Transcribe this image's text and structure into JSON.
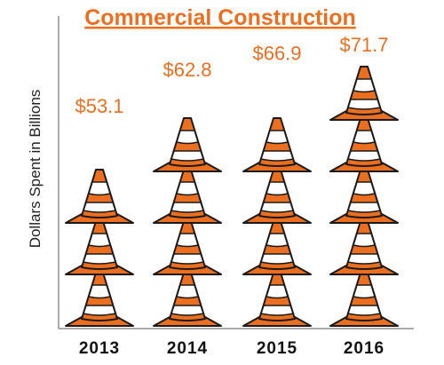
{
  "chart_data": {
    "type": "bar",
    "title": "Commercial Construction",
    "xlabel": "",
    "ylabel": "Dollars Spent in Billions",
    "categories": [
      "2013",
      "2014",
      "2015",
      "2016"
    ],
    "values": [
      53.1,
      62.8,
      66.9,
      71.7
    ],
    "value_labels": [
      "$53.1",
      "$62.8",
      "$66.9",
      "$71.7"
    ],
    "unit_per_icon": 13.4,
    "icon": "traffic-cone-icon",
    "grid": false,
    "legend": "none"
  },
  "colors": {
    "accent": "#ec6f1f",
    "outline": "#1a1a1a",
    "stripe": "#ffffff",
    "text": "#111111"
  }
}
